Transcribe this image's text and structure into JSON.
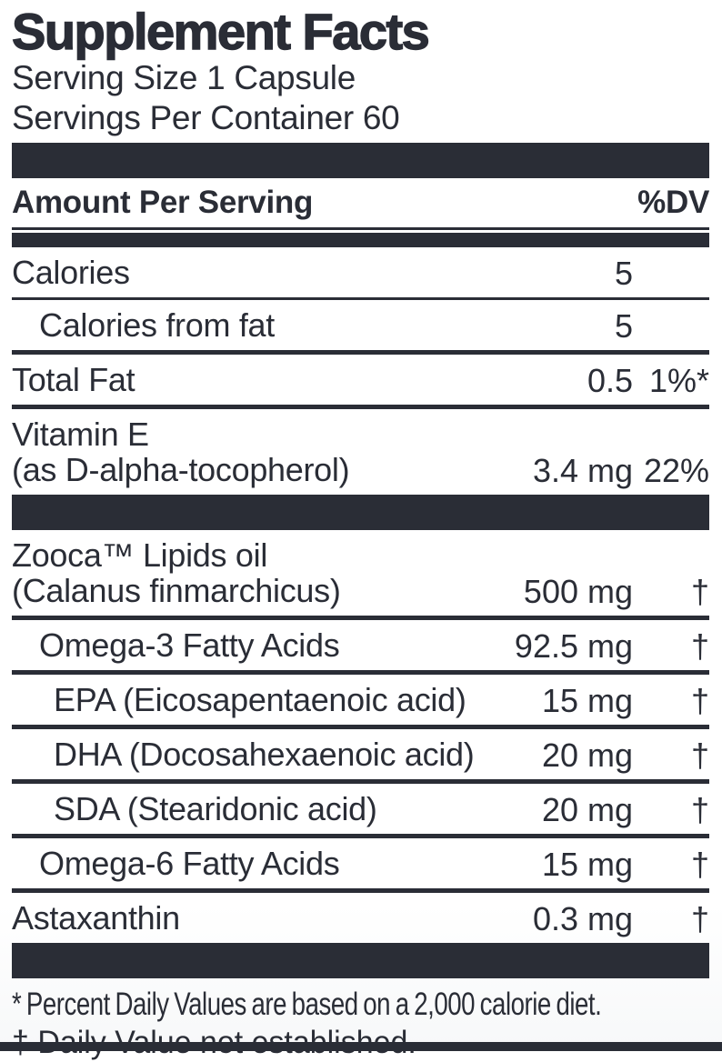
{
  "colors": {
    "ink": "#2a2d36",
    "background": "#ffffff"
  },
  "header": {
    "title": "Supplement Facts",
    "serving_size": "Serving Size 1 Capsule",
    "servings_per_container": "Servings Per Container 60"
  },
  "table": {
    "amount_header": "Amount Per Serving",
    "dv_header": "%DV",
    "rows": [
      {
        "name": "Calories",
        "subname": "",
        "amount": "5",
        "dv": "",
        "indent": 0,
        "divider_after": "thin"
      },
      {
        "name": "Calories from fat",
        "subname": "",
        "amount": "5",
        "dv": "",
        "indent": 1,
        "divider_after": "medium"
      },
      {
        "name": "Total Fat",
        "subname": "",
        "amount": "0.5",
        "dv": "1%*",
        "indent": 0,
        "divider_after": "medium"
      },
      {
        "name": "Vitamin E",
        "subname": "(as D-alpha-tocopherol)",
        "amount": "3.4 mg",
        "dv": "22%",
        "indent": 0,
        "divider_after": "bar"
      },
      {
        "name": "Zooca™ Lipids oil",
        "subname": "(Calanus finmarchicus)",
        "amount": "500 mg",
        "dv": "†",
        "indent": 0,
        "divider_after": "medium"
      },
      {
        "name": "Omega-3 Fatty Acids",
        "subname": "",
        "amount": "92.5 mg",
        "dv": "†",
        "indent": 1,
        "divider_after": "medium"
      },
      {
        "name": "EPA (Eicosapentaenoic acid)",
        "subname": "",
        "amount": "15 mg",
        "dv": "†",
        "indent": 2,
        "divider_after": "medium"
      },
      {
        "name": "DHA (Docosahexaenoic acid)",
        "subname": "",
        "amount": "20 mg",
        "dv": "†",
        "indent": 2,
        "divider_after": "medium"
      },
      {
        "name": "SDA (Stearidonic acid)",
        "subname": "",
        "amount": "20 mg",
        "dv": "†",
        "indent": 2,
        "divider_after": "medium"
      },
      {
        "name": "Omega-6 Fatty Acids",
        "subname": "",
        "amount": "15 mg",
        "dv": "†",
        "indent": 1,
        "divider_after": "medium"
      },
      {
        "name": "Astaxanthin",
        "subname": "",
        "amount": "0.3 mg",
        "dv": "†",
        "indent": 0,
        "divider_after": "bar"
      }
    ]
  },
  "footnotes": [
    "* Percent Daily Values are based on a 2,000 calorie diet.",
    "† Daily Value not established."
  ]
}
